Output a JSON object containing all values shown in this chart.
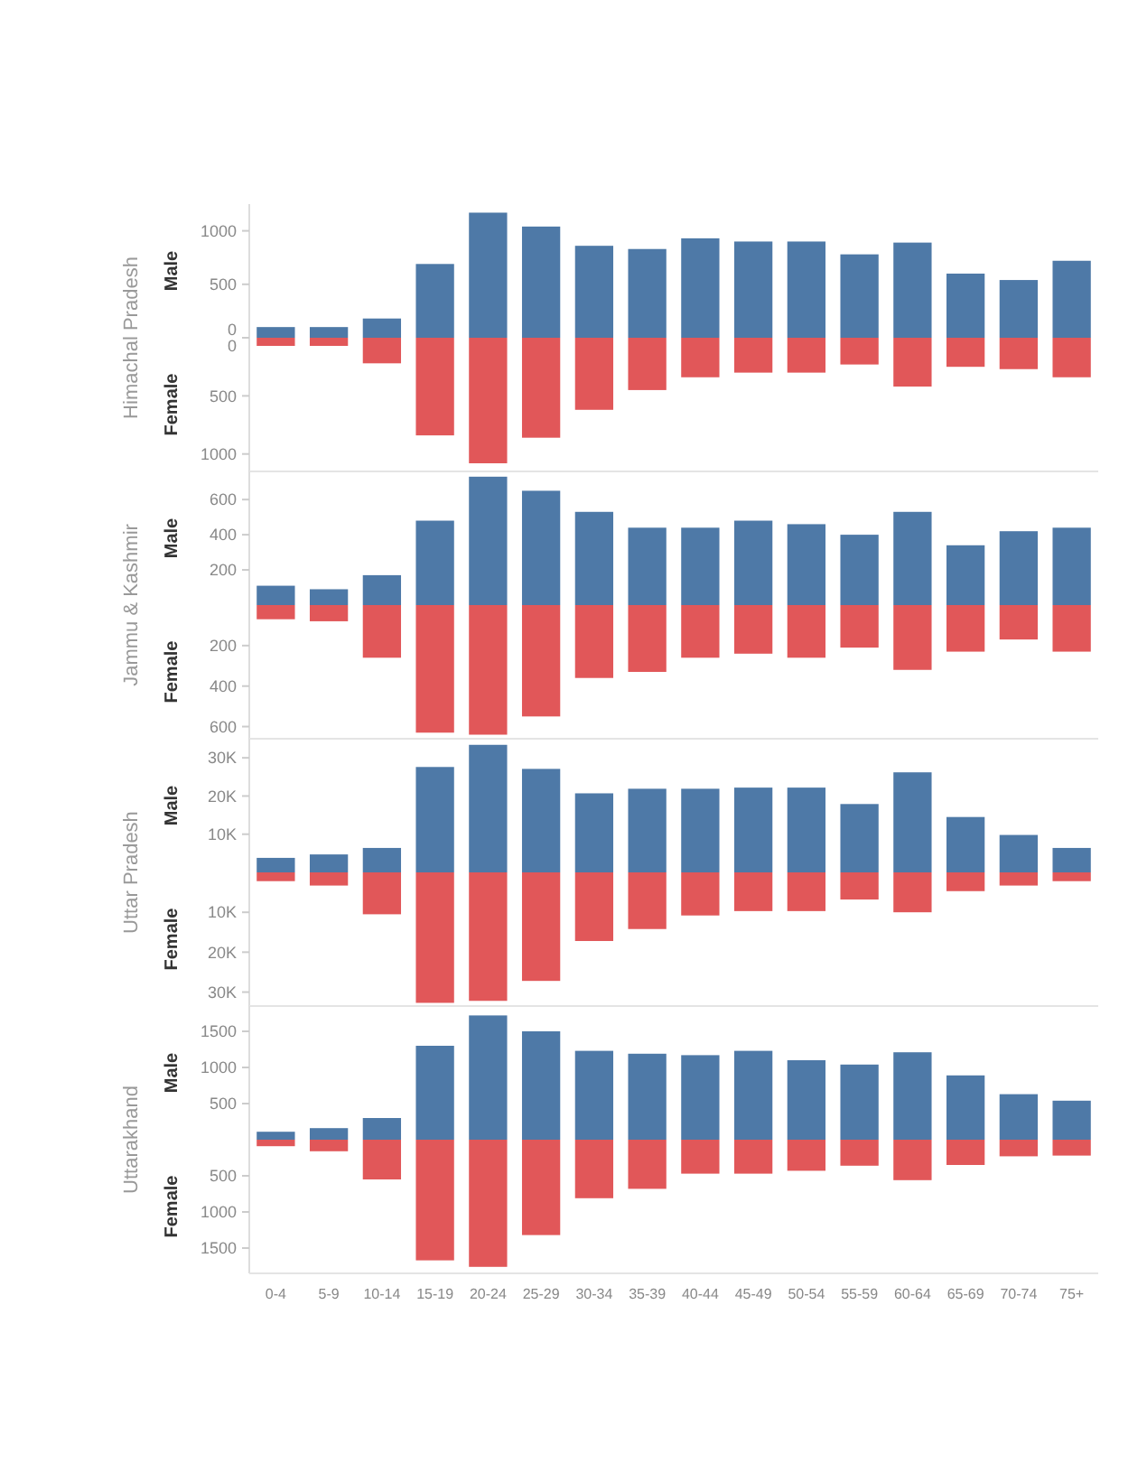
{
  "chart_data": [
    {
      "type": "bar",
      "title": "Himachal Pradesh",
      "ylabel": "Male",
      "categories": [
        null,
        null,
        null,
        null,
        null,
        null,
        null,
        null,
        null,
        null,
        null,
        null,
        null,
        null,
        null,
        null
      ],
      "values": [
        100,
        100,
        180,
        690,
        1170,
        1040,
        860,
        830,
        930,
        900,
        900,
        780,
        890,
        600,
        540,
        720
      ],
      "color": "#4e79a7",
      "ylim": [
        0,
        1250
      ],
      "yticks": [
        0,
        500,
        1000
      ],
      "tick_labels": "y"
    },
    {
      "type": "bar",
      "ylabel": "Female",
      "categories": [
        null,
        null,
        null,
        null,
        null,
        null,
        null,
        null,
        null,
        null,
        null,
        null,
        null,
        null,
        null,
        null
      ],
      "values": [
        70,
        70,
        220,
        840,
        1080,
        860,
        620,
        450,
        340,
        300,
        300,
        230,
        420,
        250,
        270,
        340
      ],
      "color": "#e15759",
      "ylim": [
        1150,
        0
      ],
      "yticks": [
        0,
        500,
        1000
      ],
      "tick_labels": "y"
    },
    {
      "type": "bar",
      "title": "Jammu & Kashmir",
      "ylabel": "Male",
      "categories": [
        null,
        null,
        null,
        null,
        null,
        null,
        null,
        null,
        null,
        null,
        null,
        null,
        null,
        null,
        null,
        null
      ],
      "values": [
        110,
        90,
        170,
        480,
        730,
        650,
        530,
        440,
        440,
        480,
        460,
        400,
        530,
        340,
        420,
        440
      ],
      "color": "#4e79a7",
      "ylim": [
        0,
        760
      ],
      "yticks": [
        200,
        400,
        600
      ],
      "tick_labels": "y"
    },
    {
      "type": "bar",
      "ylabel": "Female",
      "categories": [
        null,
        null,
        null,
        null,
        null,
        null,
        null,
        null,
        null,
        null,
        null,
        null,
        null,
        null,
        null,
        null
      ],
      "values": [
        70,
        80,
        260,
        630,
        640,
        550,
        360,
        330,
        260,
        240,
        260,
        210,
        320,
        230,
        170,
        230
      ],
      "color": "#e15759",
      "ylim": [
        660,
        0
      ],
      "yticks": [
        200,
        400,
        600
      ],
      "tick_labels": "y"
    },
    {
      "type": "bar",
      "title": "Uttar Pradesh",
      "ylabel": "Male",
      "categories": [
        null,
        null,
        null,
        null,
        null,
        null,
        null,
        null,
        null,
        null,
        null,
        null,
        null,
        null,
        null,
        null
      ],
      "values": [
        3800,
        4700,
        6400,
        27600,
        33400,
        27100,
        20700,
        21900,
        21900,
        22200,
        22200,
        17900,
        26200,
        14500,
        9800,
        6400
      ],
      "color": "#4e79a7",
      "ylim": [
        0,
        35000
      ],
      "yticks": [
        {
          "value": 10000,
          "label": "10K"
        },
        {
          "value": 20000,
          "label": "20K"
        },
        {
          "value": 30000,
          "label": "30K"
        }
      ],
      "tick_labels": "y"
    },
    {
      "type": "bar",
      "ylabel": "Female",
      "categories": [
        null,
        null,
        null,
        null,
        null,
        null,
        null,
        null,
        null,
        null,
        null,
        null,
        null,
        null,
        null,
        null
      ],
      "values": [
        2200,
        3300,
        10500,
        32700,
        32200,
        27200,
        17200,
        14200,
        10800,
        9700,
        9700,
        6800,
        10000,
        4700,
        3300,
        2200
      ],
      "color": "#e15759",
      "ylim": [
        33500,
        0
      ],
      "yticks": [
        {
          "value": 10000,
          "label": "10K"
        },
        {
          "value": 20000,
          "label": "20K"
        },
        {
          "value": 30000,
          "label": "30K"
        }
      ],
      "tick_labels": "y"
    },
    {
      "type": "bar",
      "title": "Uttarakhand",
      "ylabel": "Male",
      "categories": [
        null,
        null,
        null,
        null,
        null,
        null,
        null,
        null,
        null,
        null,
        null,
        null,
        null,
        null,
        null,
        null
      ],
      "values": [
        110,
        160,
        300,
        1300,
        1720,
        1500,
        1230,
        1190,
        1170,
        1230,
        1100,
        1040,
        1210,
        890,
        630,
        540
      ],
      "color": "#4e79a7",
      "ylim": [
        0,
        1850
      ],
      "yticks": [
        500,
        1000,
        1500
      ],
      "tick_labels": "y"
    },
    {
      "type": "bar",
      "ylabel": "Female",
      "categories": [
        "0-4",
        "5-9",
        "10-14",
        "15-19",
        "20-24",
        "25-29",
        "30-34",
        "35-39",
        "40-44",
        "45-49",
        "50-54",
        "55-59",
        "60-64",
        "65-69",
        "70-74",
        "75+"
      ],
      "values": [
        90,
        160,
        550,
        1670,
        1760,
        1320,
        810,
        680,
        470,
        470,
        430,
        360,
        560,
        350,
        230,
        220
      ],
      "color": "#e15759",
      "ylim": [
        1850,
        0
      ],
      "yticks": [
        500,
        1000,
        1500
      ]
    }
  ]
}
